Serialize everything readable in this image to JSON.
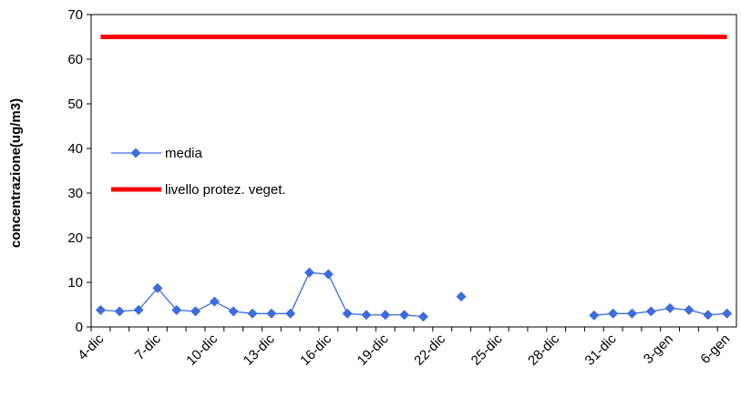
{
  "chart_data": {
    "type": "line",
    "y_label": "concentrazione(ug/m3)",
    "categories": [
      "4-dic",
      null,
      null,
      "7-dic",
      null,
      null,
      "10-dic",
      null,
      null,
      "13-dic",
      null,
      null,
      "16-dic",
      null,
      null,
      "19-dic",
      null,
      null,
      "22-dic",
      null,
      null,
      "25-dic",
      null,
      null,
      "28-dic",
      null,
      null,
      "31-dic",
      null,
      null,
      "3-gen",
      null,
      null,
      "6-gen"
    ],
    "series": [
      {
        "name": "media",
        "color": "#3d6be0",
        "marker": "diamond",
        "values": [
          3.8,
          3.5,
          3.8,
          8.7,
          3.8,
          3.5,
          5.7,
          3.5,
          3.0,
          3.0,
          3.0,
          12.2,
          11.8,
          3.0,
          2.7,
          2.7,
          2.7,
          2.3,
          null,
          6.8,
          null,
          null,
          null,
          null,
          null,
          null,
          2.6,
          3.0,
          3.0,
          3.5,
          4.2,
          3.8,
          2.7,
          3.0
        ]
      },
      {
        "name": "livello protez. veget.",
        "color": "#ff0000",
        "marker": "none",
        "values": [
          65,
          65,
          65,
          65,
          65,
          65,
          65,
          65,
          65,
          65,
          65,
          65,
          65,
          65,
          65,
          65,
          65,
          65,
          65,
          65,
          65,
          65,
          65,
          65,
          65,
          65,
          65,
          65,
          65,
          65,
          65,
          65,
          65,
          65
        ]
      }
    ],
    "ylim": [
      0,
      70
    ],
    "yticks": [
      0,
      10,
      20,
      30,
      40,
      50,
      60,
      70
    ],
    "grid": false,
    "legend": "left"
  }
}
